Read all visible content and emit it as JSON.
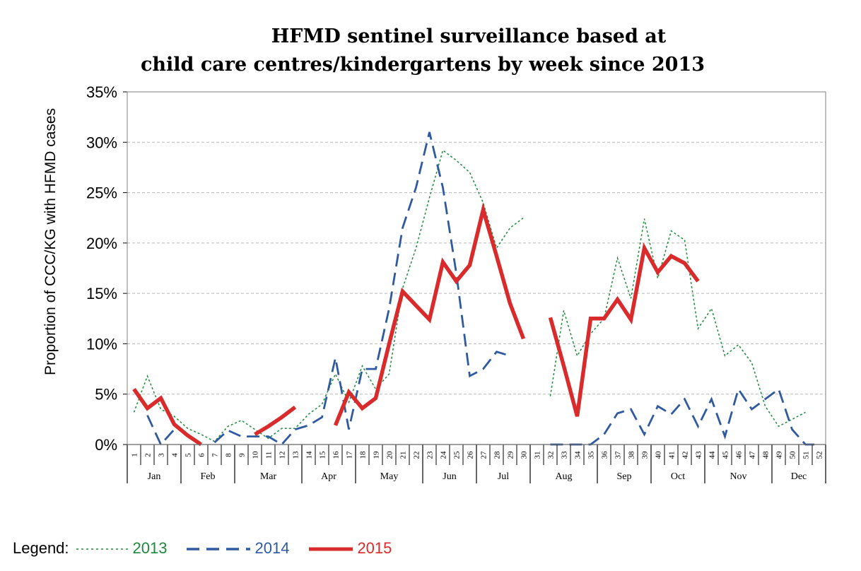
{
  "chart_data": {
    "type": "line",
    "title_lines": [
      "HFMD sentinel surveillance based at",
      "child care centres/kindergartens by week since 2013"
    ],
    "ylabel": "Proportion of CCC/KG with HFMD cases",
    "xlabel": "",
    "ylim": [
      0,
      35
    ],
    "yticks": [
      "0%",
      "5%",
      "10%",
      "15%",
      "20%",
      "25%",
      "30%",
      "35%"
    ],
    "grid": true,
    "weeks": [
      "1",
      "2",
      "3",
      "4",
      "5",
      "6",
      "7",
      "8",
      "9",
      "10",
      "11",
      "12",
      "13",
      "14",
      "15",
      "16",
      "17",
      "18",
      "19",
      "20",
      "21",
      "22",
      "23",
      "24",
      "25",
      "26",
      "27",
      "28",
      "29",
      "30",
      "31",
      "32",
      "33",
      "34",
      "35",
      "36",
      "37",
      "38",
      "39",
      "40",
      "41",
      "42",
      "43",
      "44",
      "45",
      "46",
      "47",
      "48",
      "49",
      "50",
      "51",
      "52"
    ],
    "months": [
      {
        "label": "Jan",
        "start_week": 1,
        "end_week": 4
      },
      {
        "label": "Feb",
        "start_week": 5,
        "end_week": 8
      },
      {
        "label": "Mar",
        "start_week": 9,
        "end_week": 13
      },
      {
        "label": "Apr",
        "start_week": 14,
        "end_week": 17
      },
      {
        "label": "May",
        "start_week": 18,
        "end_week": 22
      },
      {
        "label": "Jun",
        "start_week": 23,
        "end_week": 26
      },
      {
        "label": "Jul",
        "start_week": 27,
        "end_week": 30
      },
      {
        "label": "Aug",
        "start_week": 31,
        "end_week": 35
      },
      {
        "label": "Sep",
        "start_week": 36,
        "end_week": 39
      },
      {
        "label": "Oct",
        "start_week": 40,
        "end_week": 43
      },
      {
        "label": "Nov",
        "start_week": 44,
        "end_week": 48
      },
      {
        "label": "Dec",
        "start_week": 49,
        "end_week": 52
      }
    ],
    "series": [
      {
        "name": "2013",
        "color": "#1e8a3c",
        "style": "dotted",
        "values": [
          3.2,
          6.8,
          3.5,
          2.8,
          1.6,
          1.0,
          0.3,
          1.8,
          2.4,
          1.5,
          0.6,
          1.6,
          1.6,
          3.0,
          4.0,
          7.0,
          4.2,
          7.8,
          5.5,
          7.0,
          15.5,
          19.5,
          24.5,
          29.2,
          28.2,
          27.0,
          24.0,
          19.5,
          21.5,
          22.5,
          null,
          4.8,
          13.3,
          8.8,
          11.0,
          12.5,
          18.5,
          14.5,
          22.4,
          16.5,
          21.2,
          20.3,
          11.5,
          13.5,
          8.8,
          9.9,
          8.1,
          3.8,
          1.8,
          2.5,
          3.2,
          null
        ]
      },
      {
        "name": "2014",
        "color": "#2f5aa0",
        "style": "dashed",
        "values": [
          null,
          2.9,
          0.0,
          1.5,
          null,
          null,
          0.2,
          1.4,
          0.8,
          0.8,
          0.8,
          0.0,
          1.5,
          1.9,
          2.7,
          8.6,
          1.5,
          7.5,
          7.5,
          13.5,
          21.5,
          25.5,
          31.0,
          25.5,
          17.0,
          6.8,
          7.5,
          9.2,
          8.8,
          null,
          null,
          0.0,
          0.0,
          0.0,
          0.0,
          1.0,
          3.1,
          3.5,
          1.0,
          3.8,
          3.0,
          4.5,
          1.8,
          4.5,
          0.8,
          5.5,
          3.5,
          4.5,
          5.5,
          1.5,
          0.0,
          0.0
        ]
      },
      {
        "name": "2015",
        "color": "#d92b2b",
        "style": "solid",
        "values": [
          5.5,
          3.6,
          4.6,
          2.0,
          0.9,
          0.0,
          null,
          null,
          null,
          1.0,
          1.8,
          2.7,
          3.7,
          null,
          null,
          1.9,
          5.2,
          3.6,
          4.6,
          10.0,
          15.2,
          13.8,
          12.4,
          18.1,
          16.2,
          17.8,
          23.3,
          18.7,
          14.0,
          10.5,
          null,
          12.6,
          7.8,
          2.8,
          12.5,
          12.5,
          14.4,
          12.4,
          19.5,
          17.1,
          18.7,
          18.0,
          16.2,
          null,
          null,
          null,
          null,
          null,
          null,
          null,
          null,
          null
        ]
      }
    ]
  },
  "legend": {
    "prefix": "Legend:",
    "items": [
      {
        "label": "2013",
        "color": "#1e8a3c",
        "style": "dotted"
      },
      {
        "label": "2014",
        "color": "#2f5aa0",
        "style": "dashed"
      },
      {
        "label": "2015",
        "color": "#d92b2b",
        "style": "solid"
      }
    ]
  }
}
